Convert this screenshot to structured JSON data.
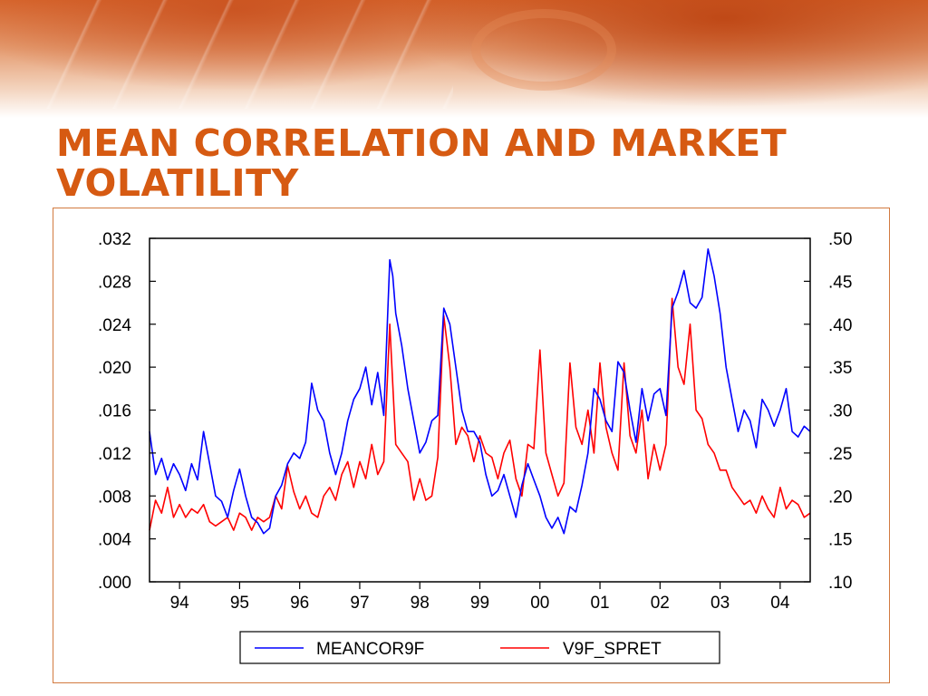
{
  "slide": {
    "title": "MEAN CORRELATION AND MARKET VOLATILITY"
  },
  "chart_data": {
    "type": "line",
    "x_tick_labels": [
      "94",
      "95",
      "96",
      "97",
      "98",
      "99",
      "00",
      "01",
      "02",
      "03",
      "04"
    ],
    "xlim": [
      1993.5,
      2004.5
    ],
    "left_axis": {
      "ylim": [
        0.0,
        0.032
      ],
      "tick_labels": [
        ".000",
        ".004",
        ".008",
        ".012",
        ".016",
        ".020",
        ".024",
        ".028",
        ".032"
      ],
      "tick_values": [
        0.0,
        0.004,
        0.008,
        0.012,
        0.016,
        0.02,
        0.024,
        0.028,
        0.032
      ]
    },
    "right_axis": {
      "ylim": [
        0.1,
        0.5
      ],
      "tick_labels": [
        ".10",
        ".15",
        ".20",
        ".25",
        ".30",
        ".35",
        ".40",
        ".45",
        ".50"
      ],
      "tick_values": [
        0.1,
        0.15,
        0.2,
        0.25,
        0.3,
        0.35,
        0.4,
        0.45,
        0.5
      ]
    },
    "grid": false,
    "legend_position": "bottom-center",
    "series": [
      {
        "name": "MEANCOR9F",
        "axis": "left",
        "color": "#0000ff",
        "x": [
          1993.5,
          1993.6,
          1993.7,
          1993.8,
          1993.9,
          1994.0,
          1994.1,
          1994.2,
          1994.3,
          1994.4,
          1994.5,
          1994.6,
          1994.7,
          1994.8,
          1994.9,
          1995.0,
          1995.1,
          1995.2,
          1995.3,
          1995.4,
          1995.5,
          1995.6,
          1995.7,
          1995.8,
          1995.9,
          1996.0,
          1996.1,
          1996.2,
          1996.3,
          1996.4,
          1996.5,
          1996.6,
          1996.7,
          1996.8,
          1996.9,
          1997.0,
          1997.1,
          1997.2,
          1997.3,
          1997.4,
          1997.5,
          1997.55,
          1997.6,
          1997.7,
          1997.8,
          1997.9,
          1998.0,
          1998.1,
          1998.2,
          1998.3,
          1998.4,
          1998.5,
          1998.6,
          1998.7,
          1998.8,
          1998.9,
          1999.0,
          1999.1,
          1999.2,
          1999.3,
          1999.4,
          1999.5,
          1999.6,
          1999.7,
          1999.8,
          1999.9,
          2000.0,
          2000.1,
          2000.2,
          2000.3,
          2000.4,
          2000.5,
          2000.6,
          2000.7,
          2000.8,
          2000.9,
          2001.0,
          2001.1,
          2001.2,
          2001.3,
          2001.4,
          2001.5,
          2001.6,
          2001.7,
          2001.8,
          2001.9,
          2002.0,
          2002.1,
          2002.2,
          2002.3,
          2002.4,
          2002.5,
          2002.6,
          2002.7,
          2002.8,
          2002.9,
          2003.0,
          2003.1,
          2003.2,
          2003.3,
          2003.4,
          2003.5,
          2003.6,
          2003.7,
          2003.8,
          2003.9,
          2004.0,
          2004.1,
          2004.2,
          2004.3,
          2004.4,
          2004.5
        ],
        "values": [
          0.014,
          0.01,
          0.0115,
          0.0095,
          0.011,
          0.01,
          0.0085,
          0.011,
          0.0095,
          0.014,
          0.011,
          0.008,
          0.0075,
          0.006,
          0.0085,
          0.0105,
          0.008,
          0.006,
          0.0055,
          0.0045,
          0.005,
          0.008,
          0.009,
          0.011,
          0.012,
          0.0115,
          0.013,
          0.0185,
          0.016,
          0.015,
          0.012,
          0.01,
          0.012,
          0.015,
          0.017,
          0.018,
          0.02,
          0.0165,
          0.0195,
          0.0155,
          0.03,
          0.0285,
          0.025,
          0.022,
          0.018,
          0.015,
          0.012,
          0.013,
          0.015,
          0.0155,
          0.0255,
          0.024,
          0.02,
          0.016,
          0.014,
          0.014,
          0.013,
          0.01,
          0.008,
          0.0085,
          0.01,
          0.008,
          0.006,
          0.009,
          0.011,
          0.0095,
          0.008,
          0.006,
          0.005,
          0.006,
          0.0045,
          0.007,
          0.0065,
          0.009,
          0.012,
          0.018,
          0.017,
          0.015,
          0.014,
          0.0205,
          0.0195,
          0.016,
          0.013,
          0.018,
          0.015,
          0.0175,
          0.018,
          0.0155,
          0.0255,
          0.027,
          0.029,
          0.026,
          0.0255,
          0.0265,
          0.031,
          0.0285,
          0.025,
          0.02,
          0.017,
          0.014,
          0.016,
          0.015,
          0.0125,
          0.017,
          0.016,
          0.0145,
          0.016,
          0.018,
          0.014,
          0.0135,
          0.0145,
          0.014
        ]
      },
      {
        "name": "V9F_SPRET",
        "axis": "right",
        "color": "#ff0000",
        "x": [
          1993.5,
          1993.6,
          1993.7,
          1993.8,
          1993.9,
          1994.0,
          1994.1,
          1994.2,
          1994.3,
          1994.4,
          1994.5,
          1994.6,
          1994.7,
          1994.8,
          1994.9,
          1995.0,
          1995.1,
          1995.2,
          1995.3,
          1995.4,
          1995.5,
          1995.6,
          1995.7,
          1995.8,
          1995.9,
          1996.0,
          1996.1,
          1996.2,
          1996.3,
          1996.4,
          1996.5,
          1996.6,
          1996.7,
          1996.8,
          1996.9,
          1997.0,
          1997.1,
          1997.2,
          1997.3,
          1997.4,
          1997.5,
          1997.55,
          1997.6,
          1997.7,
          1997.8,
          1997.9,
          1998.0,
          1998.1,
          1998.2,
          1998.3,
          1998.4,
          1998.5,
          1998.6,
          1998.7,
          1998.8,
          1998.9,
          1999.0,
          1999.1,
          1999.2,
          1999.3,
          1999.4,
          1999.5,
          1999.6,
          1999.7,
          1999.8,
          1999.9,
          2000.0,
          2000.1,
          2000.2,
          2000.3,
          2000.4,
          2000.5,
          2000.6,
          2000.7,
          2000.8,
          2000.9,
          2001.0,
          2001.1,
          2001.2,
          2001.3,
          2001.4,
          2001.5,
          2001.6,
          2001.7,
          2001.8,
          2001.9,
          2002.0,
          2002.1,
          2002.2,
          2002.3,
          2002.4,
          2002.5,
          2002.6,
          2002.7,
          2002.8,
          2002.9,
          2003.0,
          2003.1,
          2003.2,
          2003.3,
          2003.4,
          2003.5,
          2003.6,
          2003.7,
          2003.8,
          2003.9,
          2004.0,
          2004.1,
          2004.2,
          2004.3,
          2004.4,
          2004.5
        ],
        "values": [
          0.16,
          0.195,
          0.18,
          0.21,
          0.175,
          0.19,
          0.175,
          0.185,
          0.18,
          0.19,
          0.17,
          0.165,
          0.17,
          0.175,
          0.16,
          0.18,
          0.175,
          0.16,
          0.175,
          0.17,
          0.175,
          0.2,
          0.185,
          0.235,
          0.205,
          0.185,
          0.2,
          0.18,
          0.175,
          0.2,
          0.21,
          0.195,
          0.225,
          0.24,
          0.21,
          0.24,
          0.22,
          0.26,
          0.225,
          0.24,
          0.4,
          0.33,
          0.26,
          0.25,
          0.24,
          0.195,
          0.22,
          0.195,
          0.2,
          0.245,
          0.41,
          0.35,
          0.26,
          0.28,
          0.27,
          0.24,
          0.27,
          0.25,
          0.245,
          0.22,
          0.25,
          0.265,
          0.22,
          0.2,
          0.26,
          0.255,
          0.37,
          0.25,
          0.225,
          0.2,
          0.215,
          0.355,
          0.28,
          0.26,
          0.3,
          0.25,
          0.355,
          0.28,
          0.25,
          0.23,
          0.355,
          0.27,
          0.25,
          0.3,
          0.22,
          0.26,
          0.23,
          0.26,
          0.43,
          0.35,
          0.33,
          0.4,
          0.3,
          0.29,
          0.26,
          0.25,
          0.23,
          0.23,
          0.21,
          0.2,
          0.19,
          0.195,
          0.18,
          0.2,
          0.185,
          0.175,
          0.21,
          0.185,
          0.195,
          0.19,
          0.175,
          0.18
        ]
      }
    ]
  }
}
